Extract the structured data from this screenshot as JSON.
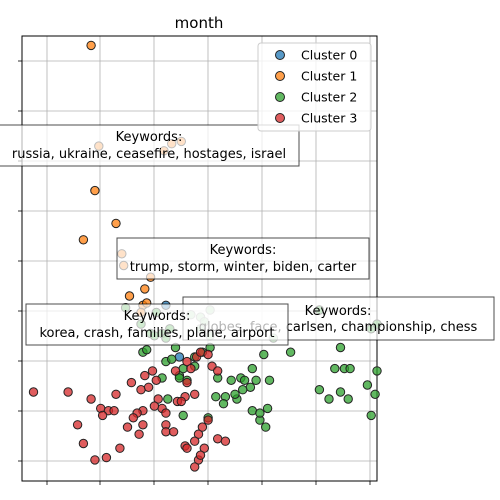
{
  "chart_data": {
    "type": "scatter",
    "title": "month",
    "xlabel": "",
    "ylabel": "",
    "grid": true,
    "legend_position": "top-right",
    "series": [
      {
        "name": "Cluster 0",
        "color": "#1f77b4",
        "points": [
          [
            5.5,
            7.0
          ],
          [
            6.2,
            4.8
          ]
        ]
      },
      {
        "name": "Cluster 1",
        "color": "#ff7f0e",
        "points": [
          [
            1.6,
            18.1
          ],
          [
            2.0,
            13.8
          ],
          [
            1.8,
            11.9
          ],
          [
            1.2,
            9.8
          ],
          [
            2.9,
            10.5
          ],
          [
            3.3,
            8.7
          ],
          [
            3.6,
            7.4
          ],
          [
            4.3,
            7.0
          ],
          [
            4.2,
            6.7
          ],
          [
            4.5,
            7.1
          ],
          [
            4.7,
            8.2
          ],
          [
            4.4,
            7.7
          ],
          [
            5.4,
            13.6
          ],
          [
            5.8,
            13.9
          ],
          [
            6.3,
            14.0
          ],
          [
            3.2,
            9.2
          ]
        ]
      },
      {
        "name": "Cluster 2",
        "color": "#2ca02c",
        "points": [
          [
            3.4,
            6.9
          ],
          [
            4.2,
            6.2
          ],
          [
            4.3,
            5.0
          ],
          [
            4.5,
            5.1
          ],
          [
            4.7,
            5.8
          ],
          [
            4.9,
            5.7
          ],
          [
            5.0,
            6.7
          ],
          [
            5.3,
            5.8
          ],
          [
            5.5,
            5.6
          ],
          [
            5.7,
            6.0
          ],
          [
            5.5,
            4.6
          ],
          [
            5.8,
            4.7
          ],
          [
            6.0,
            5.2
          ],
          [
            6.2,
            4.0
          ],
          [
            6.4,
            4.3
          ],
          [
            6.2,
            3.9
          ],
          [
            6.6,
            3.8
          ],
          [
            7.0,
            4.4
          ],
          [
            7.0,
            4.8
          ],
          [
            7.4,
            5.0
          ],
          [
            7.8,
            5.2
          ],
          [
            7.8,
            6.8
          ],
          [
            7.3,
            6.5
          ],
          [
            5.3,
            3.9
          ],
          [
            5.6,
            3.0
          ],
          [
            6.4,
            2.3
          ],
          [
            7.7,
            2.2
          ],
          [
            8.2,
            3.9
          ],
          [
            8.6,
            3.1
          ],
          [
            8.9,
            3.8
          ],
          [
            9.4,
            3.9
          ],
          [
            9.2,
            3.0
          ],
          [
            9.6,
            3.8
          ],
          [
            10.2,
            3.8
          ],
          [
            9.9,
            3.5
          ],
          [
            10.0,
            2.5
          ],
          [
            10.9,
            3.8
          ],
          [
            10.6,
            4.9
          ],
          [
            10.0,
            4.3
          ],
          [
            9.5,
            3.4
          ],
          [
            9.1,
            3.2
          ],
          [
            10.4,
            2.1
          ],
          [
            10.7,
            1.8
          ],
          [
            10.8,
            2.6
          ],
          [
            10.4,
            2.4
          ],
          [
            8.5,
            2.8
          ],
          [
            8.1,
            3.1
          ],
          [
            7.3,
            6.0
          ],
          [
            6.8,
            6.6
          ],
          [
            7.5,
            6.3
          ],
          [
            7.8,
            5.7
          ],
          [
            11.1,
            5.6
          ],
          [
            12.0,
            5.0
          ],
          [
            13.5,
            3.4
          ],
          [
            13.5,
            6.8
          ],
          [
            14.3,
            4.3
          ],
          [
            14.6,
            5.2
          ],
          [
            14.6,
            3.3
          ],
          [
            14.8,
            4.3
          ],
          [
            15.1,
            4.3
          ],
          [
            16.2,
            6.0
          ],
          [
            16.5,
            6.2
          ],
          [
            14.0,
            3.0
          ],
          [
            16.5,
            4.2
          ],
          [
            15.0,
            3.0
          ],
          [
            16.4,
            3.2
          ],
          [
            16.2,
            2.3
          ],
          [
            16.0,
            3.6
          ]
        ]
      },
      {
        "name": "Cluster 3",
        "color": "#d62728",
        "points": [
          [
            -1.4,
            3.3
          ],
          [
            0.4,
            3.3
          ],
          [
            1.6,
            3.0
          ],
          [
            2.1,
            2.6
          ],
          [
            2.5,
            2.5
          ],
          [
            2.9,
            3.2
          ],
          [
            3.7,
            3.7
          ],
          [
            4.2,
            3.4
          ],
          [
            4.4,
            4.0
          ],
          [
            4.6,
            3.5
          ],
          [
            4.8,
            4.2
          ],
          [
            5.1,
            3.0
          ],
          [
            5.3,
            2.6
          ],
          [
            5.5,
            2.4
          ],
          [
            6.0,
            4.2
          ],
          [
            6.6,
            4.6
          ],
          [
            6.8,
            4.3
          ],
          [
            7.1,
            4.8
          ],
          [
            7.3,
            5.0
          ],
          [
            7.7,
            4.9
          ],
          [
            5.5,
            1.9
          ],
          [
            6.1,
            2.9
          ],
          [
            6.5,
            3.1
          ],
          [
            7.9,
            4.4
          ],
          [
            8.2,
            4.2
          ],
          [
            6.6,
            3.7
          ],
          [
            7.0,
            3.2
          ],
          [
            7.7,
            2.1
          ],
          [
            7.2,
            1.5
          ],
          [
            7.4,
            1.8
          ],
          [
            6.5,
            1.0
          ],
          [
            6.3,
            2.9
          ],
          [
            4.9,
            2.7
          ],
          [
            4.3,
            2.5
          ],
          [
            4.0,
            2.4
          ],
          [
            3.8,
            2.2
          ],
          [
            3.5,
            1.8
          ],
          [
            2.8,
            2.5
          ],
          [
            2.2,
            2.3
          ],
          [
            7.0,
            1.2
          ],
          [
            6.6,
            0.9
          ],
          [
            7.2,
            0.4
          ],
          [
            7.0,
            0.1
          ],
          [
            7.5,
            0.9
          ],
          [
            8.2,
            1.3
          ],
          [
            8.6,
            1.2
          ],
          [
            0.9,
            1.9
          ],
          [
            1.2,
            1.1
          ],
          [
            1.8,
            0.4
          ],
          [
            2.4,
            0.5
          ],
          [
            3.1,
            0.9
          ],
          [
            7.3,
            0.6
          ],
          [
            5.0,
            3.8
          ],
          [
            4.3,
            1.9
          ],
          [
            4.1,
            1.5
          ],
          [
            5.5,
            1.6
          ],
          [
            5.9,
            1.6
          ]
        ]
      }
    ],
    "annotations": [
      {
        "label": "Keywords:",
        "text": "russia, ukraine, ceasefire, hostages, israel"
      },
      {
        "label": "Keywords:",
        "text": "trump, storm, winter, biden, carter"
      },
      {
        "label": "Keywords:",
        "text": "globes, face, carlsen, championship, chess"
      },
      {
        "label": "Keywords:",
        "text": "korea, crash, families, plane, airport"
      }
    ]
  }
}
